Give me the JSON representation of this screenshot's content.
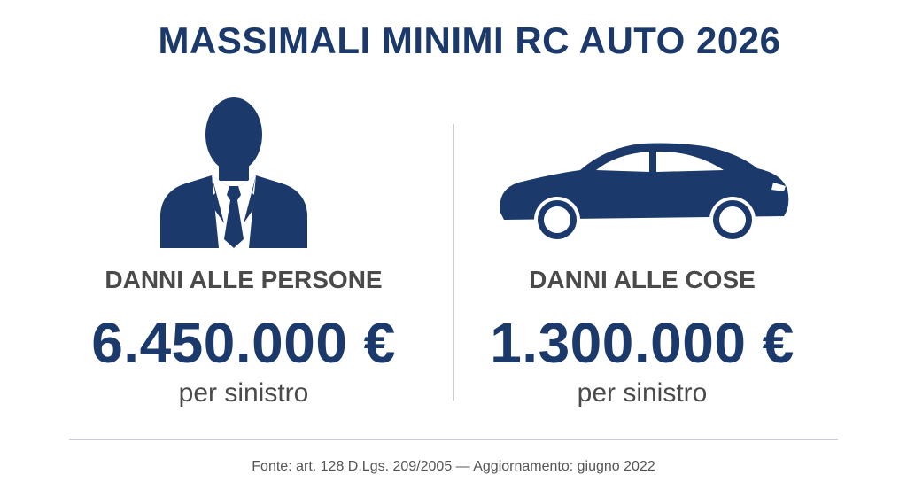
{
  "title": "MASSIMALI MINIMI RC AUTO 2026",
  "left": {
    "icon": "person-silhouette-icon",
    "label": "DANNI ALLE PERSONE",
    "value": "6.450.000 €",
    "unit": "per sinistro"
  },
  "right": {
    "icon": "car-icon",
    "label": "DANNI ALLE COSE",
    "value": "1.300.000 €",
    "unit": "per sinistro"
  },
  "source": "Fonte: art. 128 D.Lgs. 209/2005 — Aggiornamento: giugno 2022",
  "colors": {
    "primary": "#1b3a6b",
    "text": "#4a4a4a",
    "divider": "#c9cdd3"
  }
}
